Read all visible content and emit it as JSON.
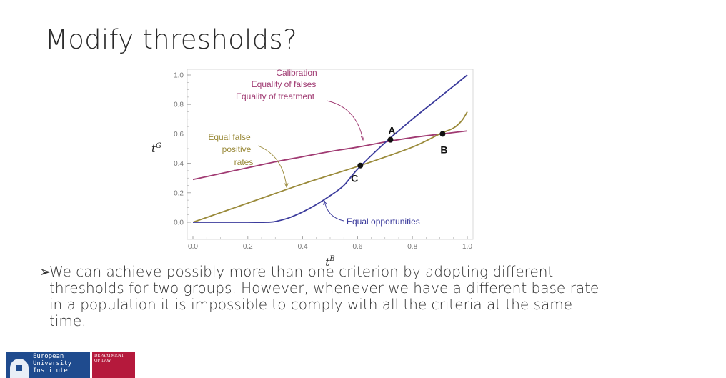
{
  "slide": {
    "title": "Modify thresholds?",
    "bullet_symbol": "➢",
    "body_lines": [
      "We can achieve possibly more than one criterion by adopting different",
      "thresholds for two groups. However, whenever we have a different base rate",
      "in a population it is impossible to comply with all the criteria at the same",
      "time."
    ]
  },
  "logo": {
    "institute_text": "European\nUniversity\nInstitute",
    "department_text": "DEPARTMENT\nOF LAW",
    "colors": {
      "blue": "#1f4b8e",
      "red": "#b5193c"
    }
  },
  "chart_data": {
    "type": "line",
    "title": "",
    "xlabel": "t^B",
    "ylabel": "t^G",
    "xlim": [
      0,
      1
    ],
    "ylim": [
      0,
      1
    ],
    "x_ticks": [
      "0.0",
      "0.2",
      "0.4",
      "0.6",
      "0.8",
      "1.0"
    ],
    "y_ticks": [
      "0.0",
      "0.2",
      "0.4",
      "0.6",
      "0.8",
      "1.0"
    ],
    "grid": false,
    "series": [
      {
        "name": "Calibration / Equality of falses / Equality of treatment",
        "color": "#a03a72",
        "x": [
          0.0,
          0.1,
          0.2,
          0.3,
          0.4,
          0.5,
          0.6,
          0.7,
          0.8,
          0.9,
          1.0
        ],
        "y": [
          0.29,
          0.33,
          0.37,
          0.41,
          0.445,
          0.48,
          0.51,
          0.545,
          0.575,
          0.598,
          0.62
        ]
      },
      {
        "name": "Equal false positive rates",
        "color": "#9a8a3a",
        "x": [
          0.0,
          0.2,
          0.4,
          0.61,
          0.8,
          0.9,
          0.95,
          0.98,
          1.0
        ],
        "y": [
          0.0,
          0.13,
          0.26,
          0.385,
          0.51,
          0.6,
          0.64,
          0.69,
          0.75
        ]
      },
      {
        "name": "Equal opportunities",
        "color": "#3b3b9c",
        "x": [
          0.0,
          0.1,
          0.2,
          0.27,
          0.3,
          0.35,
          0.4,
          0.45,
          0.5,
          0.55,
          0.6,
          0.7,
          0.8,
          0.9,
          1.0
        ],
        "y": [
          0.0,
          0.0,
          0.0,
          0.0,
          0.005,
          0.03,
          0.07,
          0.12,
          0.18,
          0.25,
          0.36,
          0.54,
          0.7,
          0.85,
          1.0
        ]
      }
    ],
    "points": [
      {
        "label": "A",
        "x": 0.72,
        "y": 0.56
      },
      {
        "label": "B",
        "x": 0.91,
        "y": 0.6
      },
      {
        "label": "C",
        "x": 0.61,
        "y": 0.385
      }
    ],
    "annotations": [
      {
        "text": [
          "Calibration",
          "Equality of falses",
          "Equality of treatment"
        ],
        "color": "#a03a72"
      },
      {
        "text": [
          "Equal false",
          "positive",
          "rates"
        ],
        "color": "#9a8a3a"
      },
      {
        "text": [
          "Equal opportunities"
        ],
        "color": "#3b3b9c"
      }
    ],
    "axis_color": "#999999",
    "tick_label_color": "#777777"
  }
}
